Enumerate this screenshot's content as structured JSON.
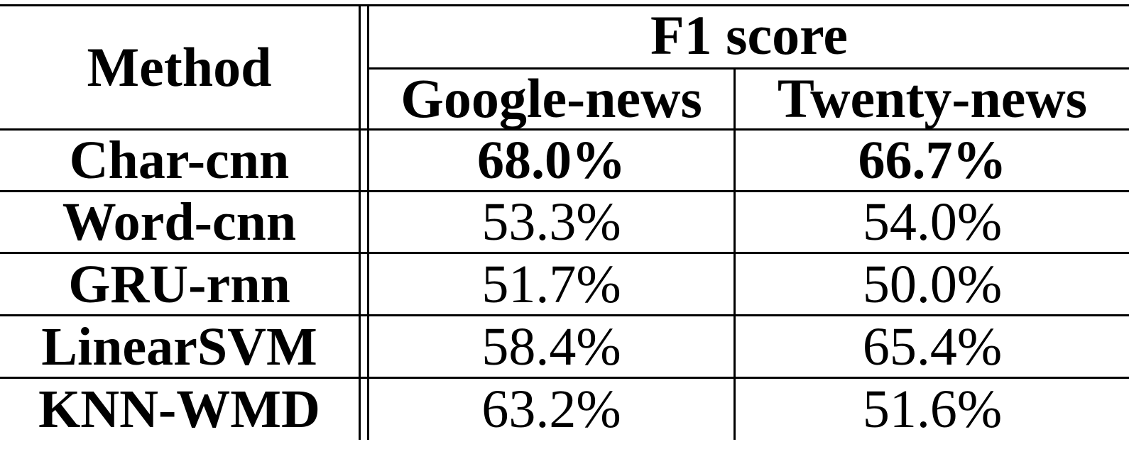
{
  "table": {
    "header": {
      "method": "Method",
      "group": "F1 score",
      "columns": [
        "Google-news",
        "Twenty-news"
      ]
    },
    "rows": [
      {
        "method": "Char-cnn",
        "values": [
          "68.0%",
          "66.7%"
        ],
        "best": true
      },
      {
        "method": "Word-cnn",
        "values": [
          "53.3%",
          "54.0%"
        ],
        "best": false
      },
      {
        "method": "GRU-rnn",
        "values": [
          "51.7%",
          "50.0%"
        ],
        "best": false
      },
      {
        "method": "LinearSVM",
        "values": [
          "58.4%",
          "65.4%"
        ],
        "best": false
      },
      {
        "method": "KNN-WMD",
        "values": [
          "63.2%",
          "51.6%"
        ],
        "best": false
      }
    ]
  }
}
